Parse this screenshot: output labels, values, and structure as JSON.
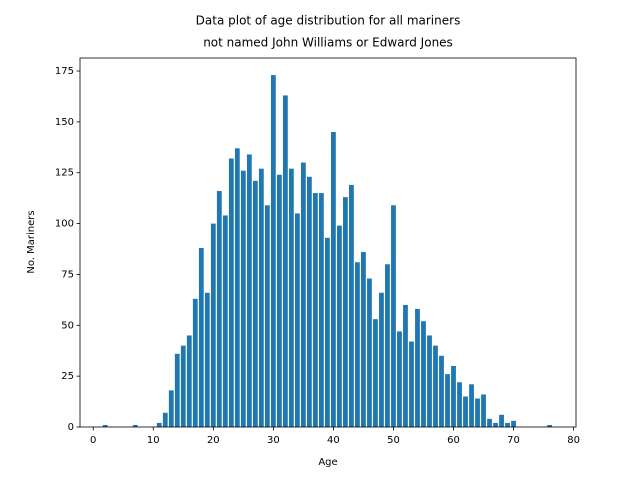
{
  "chart_data": {
    "type": "bar",
    "title": [
      "Data plot of age distribution for all mariners",
      "not named John Williams or Edward Jones"
    ],
    "xlabel": "Age",
    "ylabel": "No. Mariners",
    "color": "#1f77b4",
    "x": [
      2,
      7,
      11,
      12,
      13,
      14,
      15,
      16,
      17,
      18,
      19,
      20,
      21,
      22,
      23,
      24,
      25,
      26,
      27,
      28,
      29,
      30,
      31,
      32,
      33,
      34,
      35,
      36,
      37,
      38,
      39,
      40,
      41,
      42,
      43,
      44,
      45,
      46,
      47,
      48,
      49,
      50,
      51,
      52,
      53,
      54,
      55,
      56,
      57,
      58,
      59,
      60,
      61,
      62,
      63,
      64,
      65,
      66,
      67,
      68,
      69,
      70,
      76
    ],
    "values": [
      1,
      1,
      2,
      7,
      18,
      36,
      40,
      45,
      63,
      88,
      66,
      100,
      116,
      104,
      132,
      137,
      126,
      134,
      121,
      127,
      109,
      173,
      124,
      163,
      127,
      105,
      130,
      123,
      115,
      115,
      93,
      145,
      99,
      113,
      119,
      81,
      86,
      73,
      53,
      66,
      80,
      109,
      47,
      60,
      42,
      58,
      52,
      45,
      40,
      35,
      26,
      30,
      22,
      15,
      21,
      14,
      16,
      4,
      2,
      6,
      2,
      3,
      1
    ],
    "xlim": [
      -2.2,
      80.4
    ],
    "ylim": [
      0,
      181.4
    ],
    "xticks": [
      0,
      10,
      20,
      30,
      40,
      50,
      60,
      70,
      80
    ],
    "yticks": [
      0,
      25,
      50,
      75,
      100,
      125,
      150,
      175
    ]
  }
}
